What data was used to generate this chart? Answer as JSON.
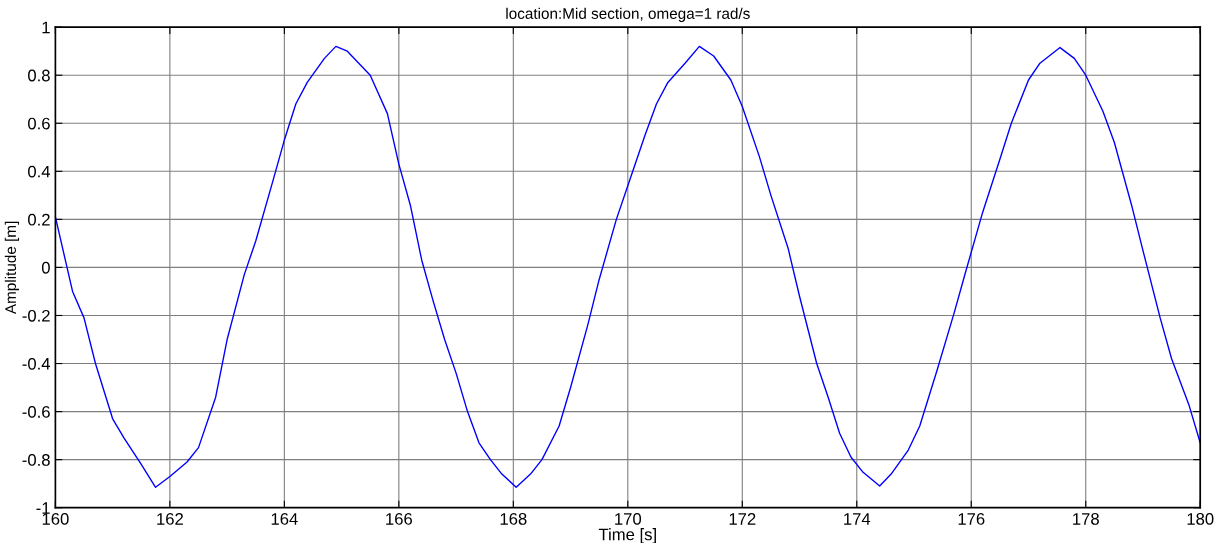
{
  "chart_data": {
    "type": "line",
    "title": "location:Mid section, omega=1 rad/s",
    "xlabel": "Time [s]",
    "ylabel": "Amplitude [m]",
    "x": [
      160,
      160.3,
      160.5,
      160.7,
      161.0,
      161.2,
      161.5,
      161.75,
      162.0,
      162.3,
      162.5,
      162.8,
      163.0,
      163.3,
      163.5,
      163.8,
      164.0,
      164.2,
      164.4,
      164.7,
      164.9,
      165.1,
      165.5,
      165.8,
      166.0,
      166.2,
      166.4,
      166.6,
      166.8,
      167.0,
      167.2,
      167.4,
      167.6,
      167.8,
      168.05,
      168.3,
      168.5,
      168.8,
      169.0,
      169.3,
      169.5,
      169.8,
      170.0,
      170.3,
      170.5,
      170.7,
      171.0,
      171.25,
      171.5,
      171.8,
      172.0,
      172.3,
      172.5,
      172.8,
      173.0,
      173.3,
      173.5,
      173.7,
      173.9,
      174.1,
      174.4,
      174.6,
      174.9,
      175.1,
      175.4,
      175.7,
      175.9,
      176.2,
      176.5,
      176.7,
      177.0,
      177.2,
      177.55,
      177.8,
      178.0,
      178.3,
      178.5,
      178.8,
      179.0,
      179.3,
      179.5,
      179.8,
      180.0
    ],
    "series": [
      {
        "color": "#0000ff",
        "values": [
          0.21,
          -0.1,
          -0.21,
          -0.4,
          -0.63,
          -0.71,
          -0.82,
          -0.915,
          -0.87,
          -0.81,
          -0.75,
          -0.54,
          -0.3,
          -0.03,
          0.11,
          0.36,
          0.53,
          0.68,
          0.77,
          0.87,
          0.92,
          0.9,
          0.8,
          0.64,
          0.43,
          0.26,
          0.03,
          -0.14,
          -0.3,
          -0.44,
          -0.6,
          -0.73,
          -0.8,
          -0.86,
          -0.915,
          -0.86,
          -0.8,
          -0.66,
          -0.5,
          -0.24,
          -0.05,
          0.2,
          0.34,
          0.55,
          0.68,
          0.77,
          0.85,
          0.92,
          0.88,
          0.78,
          0.67,
          0.46,
          0.3,
          0.08,
          -0.12,
          -0.4,
          -0.54,
          -0.69,
          -0.79,
          -0.85,
          -0.91,
          -0.86,
          -0.76,
          -0.66,
          -0.43,
          -0.19,
          -0.02,
          0.23,
          0.45,
          0.6,
          0.78,
          0.85,
          0.915,
          0.87,
          0.8,
          0.65,
          0.52,
          0.26,
          0.07,
          -0.21,
          -0.38,
          -0.57,
          -0.73
        ]
      }
    ],
    "xlim": [
      160,
      180
    ],
    "xticks": [
      160,
      162,
      164,
      166,
      168,
      170,
      172,
      174,
      176,
      178,
      180
    ],
    "ylim": [
      -1,
      1
    ],
    "yticks": [
      -1,
      -0.8,
      -0.6,
      -0.4,
      -0.2,
      0,
      0.2,
      0.4,
      0.6,
      0.8,
      1
    ],
    "grid": true,
    "line_style": "solid"
  }
}
